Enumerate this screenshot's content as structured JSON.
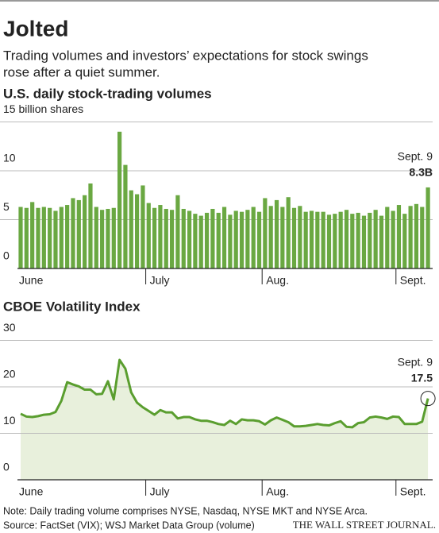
{
  "title": "Jolted",
  "subtitle": [
    "Trading volumes and investors’ expectations for stock swings",
    "rose after a quiet summer."
  ],
  "note": "Note: Daily trading volume comprises NYSE, Nasdaq, NYSE MKT and NYSE Arca.",
  "source": "Source: FactSet (VIX); WSJ Market Data Group (volume)",
  "credit": "THE WALL STREET JOURNAL.",
  "chart_data": [
    {
      "type": "bar",
      "title": "U.S. daily stock-trading volumes",
      "color": "#6aa842",
      "categories": [
        "June",
        null,
        null,
        null,
        null,
        null,
        null,
        null,
        null,
        null,
        null,
        null,
        null,
        null,
        null,
        null,
        null,
        null,
        null,
        null,
        null,
        null,
        "July",
        null,
        null,
        null,
        null,
        null,
        null,
        null,
        null,
        null,
        null,
        null,
        null,
        null,
        null,
        null,
        null,
        null,
        null,
        null,
        "Aug.",
        null,
        null,
        null,
        null,
        null,
        null,
        null,
        null,
        null,
        null,
        null,
        null,
        null,
        null,
        null,
        null,
        null,
        null,
        null,
        null,
        null,
        null,
        "Sept.",
        null,
        null,
        null,
        null,
        null
      ],
      "values": [
        6.3,
        6.2,
        6.8,
        6.2,
        6.3,
        6.2,
        5.9,
        6.3,
        6.5,
        7.2,
        7.0,
        7.5,
        8.7,
        6.3,
        6.0,
        6.1,
        6.2,
        14.0,
        10.6,
        8.0,
        7.6,
        8.5,
        6.7,
        6.2,
        6.5,
        6.1,
        6.0,
        7.5,
        6.1,
        5.9,
        5.6,
        5.4,
        5.7,
        6.1,
        5.7,
        6.3,
        5.5,
        5.9,
        5.8,
        6.0,
        6.3,
        5.8,
        7.2,
        6.4,
        7.0,
        6.3,
        7.3,
        6.2,
        6.4,
        5.8,
        5.9,
        5.8,
        5.8,
        5.5,
        5.6,
        5.8,
        6.0,
        5.6,
        5.7,
        5.4,
        5.7,
        6.0,
        5.4,
        6.3,
        5.9,
        6.5,
        5.6,
        6.4,
        6.6,
        6.3,
        8.3
      ],
      "value_labels": [
        null,
        null,
        null,
        null,
        null,
        null,
        null,
        null,
        null,
        null,
        null,
        null,
        null,
        null,
        null,
        null,
        null,
        null,
        null,
        null,
        null,
        null,
        null,
        null,
        null,
        null,
        null,
        null,
        null,
        null,
        null,
        null,
        null,
        null,
        null,
        null,
        null,
        null,
        null,
        null,
        null,
        null,
        null,
        null,
        null,
        null,
        null,
        null,
        null,
        null,
        null,
        null,
        null,
        null,
        null,
        null,
        null,
        null,
        null,
        null,
        null,
        null,
        null,
        null,
        null,
        null,
        null,
        null,
        null,
        null,
        "8.3B"
      ],
      "annotation": "Sept. 9",
      "ylim": [
        0,
        15
      ],
      "yticks": [
        0,
        5,
        10,
        {
          "value": 15,
          "label": "15 billion shares"
        }
      ],
      "grid": true
    },
    {
      "type": "area",
      "title": "CBOE Volatility Index",
      "color": "#5a9e2f",
      "fill": "#e8f0dc",
      "categories": [
        "June",
        null,
        null,
        null,
        null,
        null,
        null,
        null,
        null,
        null,
        null,
        null,
        null,
        null,
        null,
        null,
        null,
        null,
        null,
        null,
        null,
        null,
        "July",
        null,
        null,
        null,
        null,
        null,
        null,
        null,
        null,
        null,
        null,
        null,
        null,
        null,
        null,
        null,
        null,
        null,
        null,
        null,
        "Aug.",
        null,
        null,
        null,
        null,
        null,
        null,
        null,
        null,
        null,
        null,
        null,
        null,
        null,
        null,
        null,
        null,
        null,
        null,
        null,
        null,
        null,
        null,
        "Sept.",
        null,
        null,
        null,
        null,
        null
      ],
      "values": [
        14.2,
        13.6,
        13.5,
        13.7,
        14.0,
        14.1,
        14.6,
        17.0,
        21.0,
        20.5,
        20.1,
        19.4,
        19.4,
        18.4,
        18.5,
        21.2,
        17.3,
        25.8,
        23.9,
        18.8,
        16.6,
        15.6,
        14.8,
        14.0,
        15.0,
        14.5,
        14.5,
        13.2,
        13.5,
        13.5,
        13.0,
        12.7,
        12.7,
        12.4,
        12.0,
        11.8,
        12.7,
        12.0,
        13.0,
        12.8,
        12.8,
        12.6,
        11.9,
        12.8,
        13.4,
        12.9,
        12.4,
        11.5,
        11.5,
        11.6,
        11.8,
        12.0,
        11.8,
        11.7,
        12.2,
        12.6,
        11.4,
        11.3,
        12.2,
        12.4,
        13.4,
        13.6,
        13.4,
        13.1,
        13.6,
        13.5,
        12.0,
        12.0,
        12.0,
        12.5,
        17.5
      ],
      "annotation": "Sept. 9",
      "ylim": [
        0,
        30
      ],
      "yticks": [
        0,
        10,
        20,
        30
      ],
      "grid": true
    }
  ]
}
